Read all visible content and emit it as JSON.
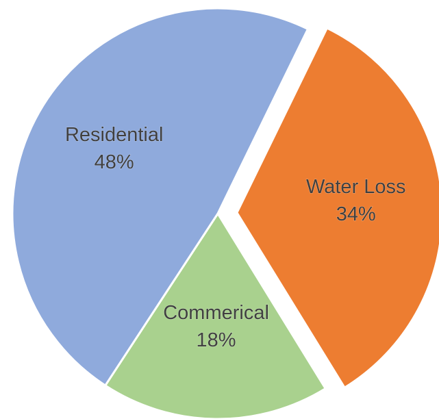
{
  "chart_data": {
    "type": "pie",
    "title": "",
    "slices": [
      {
        "name": "Water Loss",
        "value": 34,
        "value_label": "34%",
        "color": "#ED7D31",
        "exploded": true
      },
      {
        "name": "Commerical",
        "value": 18,
        "value_label": "18%",
        "color": "#A9D18E",
        "exploded": false
      },
      {
        "name": "Residential",
        "value": 48,
        "value_label": "48%",
        "color": "#8FAADC",
        "exploded": false
      }
    ],
    "start_angle_deg_clockwise_from_top": 26,
    "direction": "clockwise",
    "labels_position": "inside",
    "legend": "none"
  }
}
